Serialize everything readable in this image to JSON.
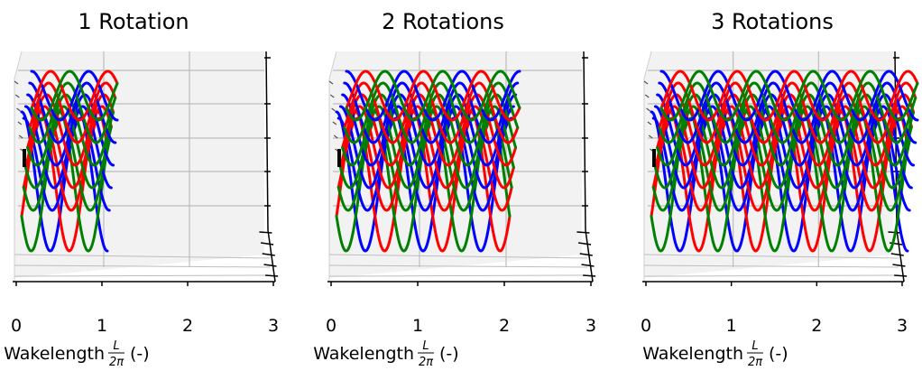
{
  "chart_data": [
    {
      "type": "line",
      "title": "1 Rotation",
      "rotations": 1,
      "xlabel": {
        "prefix": "Wakelength",
        "fraction_numerator": "L",
        "fraction_denominator": "2π",
        "suffix": "(-)"
      },
      "x_ticks": [
        "0",
        "1",
        "2",
        "3"
      ],
      "xlim": [
        0,
        3
      ],
      "layers": 6,
      "series": [
        {
          "color": "#0000ff",
          "phase_deg": 0
        },
        {
          "color": "#ff0000",
          "phase_deg": 120
        },
        {
          "color": "#008000",
          "phase_deg": 240
        }
      ],
      "x_extent": [
        0,
        1
      ],
      "grid": true
    },
    {
      "type": "line",
      "title": "2 Rotations",
      "rotations": 2,
      "xlabel": {
        "prefix": "Wakelength",
        "fraction_numerator": "L",
        "fraction_denominator": "2π",
        "suffix": "(-)"
      },
      "x_ticks": [
        "0",
        "1",
        "2",
        "3"
      ],
      "xlim": [
        0,
        3
      ],
      "layers": 6,
      "series": [
        {
          "color": "#0000ff",
          "phase_deg": 0
        },
        {
          "color": "#ff0000",
          "phase_deg": 120
        },
        {
          "color": "#008000",
          "phase_deg": 240
        }
      ],
      "x_extent": [
        0,
        2
      ],
      "grid": true
    },
    {
      "type": "line",
      "title": "3 Rotations",
      "rotations": 3,
      "xlabel": {
        "prefix": "Wakelength",
        "fraction_numerator": "L",
        "fraction_denominator": "2π",
        "suffix": "(-)"
      },
      "x_ticks": [
        "0",
        "1",
        "2",
        "3"
      ],
      "xlim": [
        0,
        3
      ],
      "layers": 6,
      "series": [
        {
          "color": "#0000ff",
          "phase_deg": 0
        },
        {
          "color": "#ff0000",
          "phase_deg": 120
        },
        {
          "color": "#008000",
          "phase_deg": 240
        }
      ],
      "x_extent": [
        0,
        3
      ],
      "grid": true
    }
  ]
}
